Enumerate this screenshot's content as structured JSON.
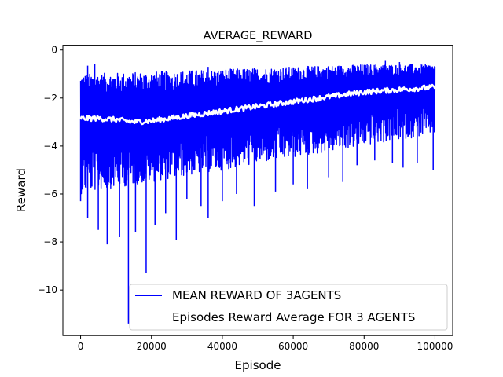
{
  "chart_data": {
    "type": "line",
    "title": "AVERAGE_REWARD",
    "xlabel": "Episode",
    "ylabel": "Reward",
    "xlim": [
      -5000,
      105000
    ],
    "ylim": [
      -11.9,
      0.2
    ],
    "x_ticks": [
      0,
      20000,
      40000,
      60000,
      80000,
      100000
    ],
    "x_tick_labels": [
      "0",
      "20000",
      "40000",
      "60000",
      "80000",
      "100000"
    ],
    "y_ticks": [
      0,
      -2,
      -4,
      -6,
      -8,
      -10
    ],
    "y_tick_labels": [
      "0",
      "−2",
      "−4",
      "−6",
      "−8",
      "−10"
    ],
    "grid": false,
    "legend_position": "lower-right",
    "colors": {
      "mean": "#0000ff",
      "average": "#ffffff"
    },
    "series": [
      {
        "name": "MEAN REWARD OF 3AGENTS",
        "kind": "noisy-band",
        "x": [
          0,
          20000,
          40000,
          60000,
          80000,
          100000
        ],
        "upper": [
          -1.0,
          -0.9,
          -0.8,
          -0.7,
          -0.6,
          -0.6
        ],
        "lower": [
          -6.0,
          -5.5,
          -5.0,
          -4.5,
          -4.0,
          -3.5
        ],
        "spikes": [
          {
            "x": 0,
            "y": -6.3
          },
          {
            "x": 2000,
            "y": -7.0
          },
          {
            "x": 5000,
            "y": -7.5
          },
          {
            "x": 7500,
            "y": -8.1
          },
          {
            "x": 11000,
            "y": -7.8
          },
          {
            "x": 13500,
            "y": -11.4
          },
          {
            "x": 15500,
            "y": -7.6
          },
          {
            "x": 18500,
            "y": -9.3
          },
          {
            "x": 21000,
            "y": -7.3
          },
          {
            "x": 24000,
            "y": -6.8
          },
          {
            "x": 27000,
            "y": -7.9
          },
          {
            "x": 30000,
            "y": -6.2
          },
          {
            "x": 34000,
            "y": -6.5
          },
          {
            "x": 36000,
            "y": -7.0
          },
          {
            "x": 40000,
            "y": -6.3
          },
          {
            "x": 44000,
            "y": -6.0
          },
          {
            "x": 49000,
            "y": -6.5
          },
          {
            "x": 55000,
            "y": -5.9
          },
          {
            "x": 60000,
            "y": -5.6
          },
          {
            "x": 64000,
            "y": -5.8
          },
          {
            "x": 70000,
            "y": -5.3
          },
          {
            "x": 74000,
            "y": -5.5
          },
          {
            "x": 78000,
            "y": -4.8
          },
          {
            "x": 83000,
            "y": -4.6
          },
          {
            "x": 88000,
            "y": -4.7
          },
          {
            "x": 91000,
            "y": -4.9
          },
          {
            "x": 95000,
            "y": -4.7
          },
          {
            "x": 99500,
            "y": -5.0
          }
        ],
        "top_spikes": [
          {
            "x": 2000,
            "y": -0.65
          },
          {
            "x": 4000,
            "y": -0.6
          },
          {
            "x": 36000,
            "y": -0.7
          },
          {
            "x": 86000,
            "y": -0.45
          },
          {
            "x": 90000,
            "y": -0.5
          }
        ]
      },
      {
        "name": "Episodes Reward Average FOR 3 AGENTS",
        "x": [
          0,
          5000,
          10000,
          15000,
          20000,
          25000,
          30000,
          35000,
          40000,
          45000,
          50000,
          55000,
          60000,
          65000,
          70000,
          75000,
          80000,
          85000,
          90000,
          95000,
          100000
        ],
        "values": [
          -2.85,
          -2.85,
          -2.9,
          -3.0,
          -2.95,
          -2.85,
          -2.75,
          -2.65,
          -2.55,
          -2.45,
          -2.35,
          -2.25,
          -2.15,
          -2.05,
          -1.95,
          -1.85,
          -1.75,
          -1.7,
          -1.65,
          -1.6,
          -1.55
        ]
      }
    ]
  }
}
